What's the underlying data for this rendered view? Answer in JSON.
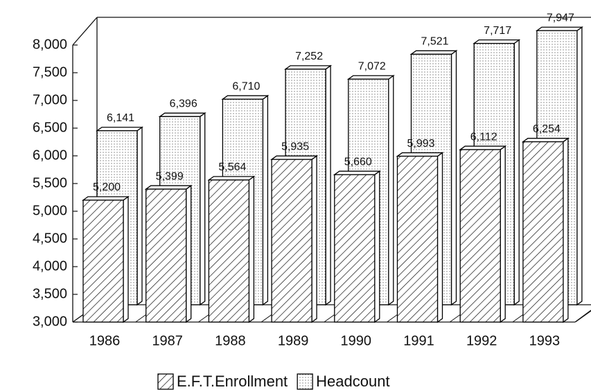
{
  "chart_data": {
    "type": "bar3d",
    "categories": [
      "1986",
      "1987",
      "1988",
      "1989",
      "1990",
      "1991",
      "1992",
      "1993"
    ],
    "series": [
      {
        "name": "E.F.T.Enrollment",
        "color": "#000000",
        "values": [
          5200,
          5399,
          5564,
          5935,
          5660,
          5993,
          6112,
          6254
        ],
        "value_labels": [
          "5,200",
          "5,399",
          "5,564",
          "5,935",
          "5,660",
          "5,993",
          "6,112",
          "6,254"
        ]
      },
      {
        "name": "Headcount",
        "color": "#000000",
        "values": [
          6141,
          6396,
          6710,
          7252,
          7072,
          7521,
          7717,
          7947
        ],
        "value_labels": [
          "6,141",
          "6,396",
          "6,710",
          "7,252",
          "7,072",
          "7,521",
          "7,717",
          "7,947"
        ]
      }
    ],
    "ylim": [
      3000,
      8000
    ],
    "yticks": [
      {
        "value": 3000,
        "label": "3,000"
      },
      {
        "value": 3500,
        "label": "3,500"
      },
      {
        "value": 4000,
        "label": "4,000"
      },
      {
        "value": 4500,
        "label": "4,500"
      },
      {
        "value": 5000,
        "label": "5,000"
      },
      {
        "value": 5500,
        "label": "5,500"
      },
      {
        "value": 6000,
        "label": "6,000"
      },
      {
        "value": 6500,
        "label": "6,500"
      },
      {
        "value": 7000,
        "label": "7,000"
      },
      {
        "value": 7500,
        "label": "7,500"
      },
      {
        "value": 8000,
        "label": "8,000"
      }
    ],
    "legend": "bottom"
  }
}
